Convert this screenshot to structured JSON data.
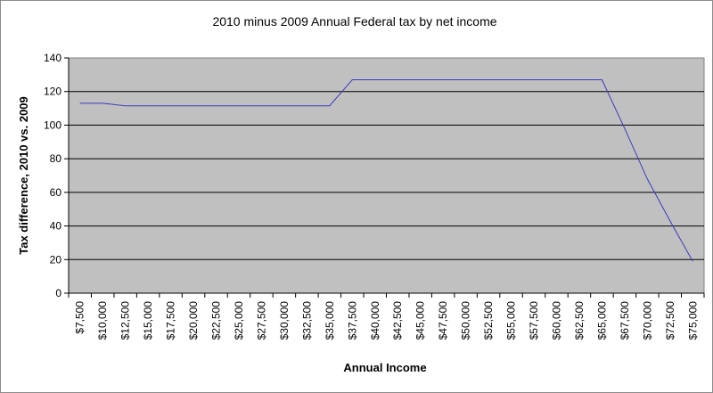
{
  "chart_data": {
    "type": "line",
    "title": "2010 minus 2009 Annual Federal tax by net income",
    "xlabel": "Annual Income",
    "ylabel": "Tax difference, 2010 vs. 2009",
    "ylim": [
      0,
      140
    ],
    "yticks": [
      0,
      20,
      40,
      60,
      80,
      100,
      120,
      140
    ],
    "grid": true,
    "legend": "none",
    "colors": {
      "plot_bg": "#c0c0c0",
      "line": "#3b3bbf",
      "grid": "#000000"
    },
    "categories": [
      "$7,500",
      "$10,000",
      "$12,500",
      "$15,000",
      "$17,500",
      "$20,000",
      "$22,500",
      "$25,000",
      "$27,500",
      "$30,000",
      "$32,500",
      "$35,000",
      "$37,500",
      "$40,000",
      "$42,500",
      "$45,000",
      "$47,500",
      "$50,000",
      "$52,500",
      "$55,000",
      "$57,500",
      "$60,000",
      "$62,500",
      "$65,000",
      "$67,500",
      "$70,000",
      "$72,500",
      "$75,000"
    ],
    "series": [
      {
        "values": [
          113,
          113,
          111.5,
          111.5,
          111.5,
          111.5,
          111.5,
          111.5,
          111.5,
          111.5,
          111.5,
          111.5,
          127,
          127,
          127,
          127,
          127,
          127,
          127,
          127,
          127,
          127,
          127,
          127,
          98,
          68,
          43,
          19
        ]
      }
    ]
  }
}
